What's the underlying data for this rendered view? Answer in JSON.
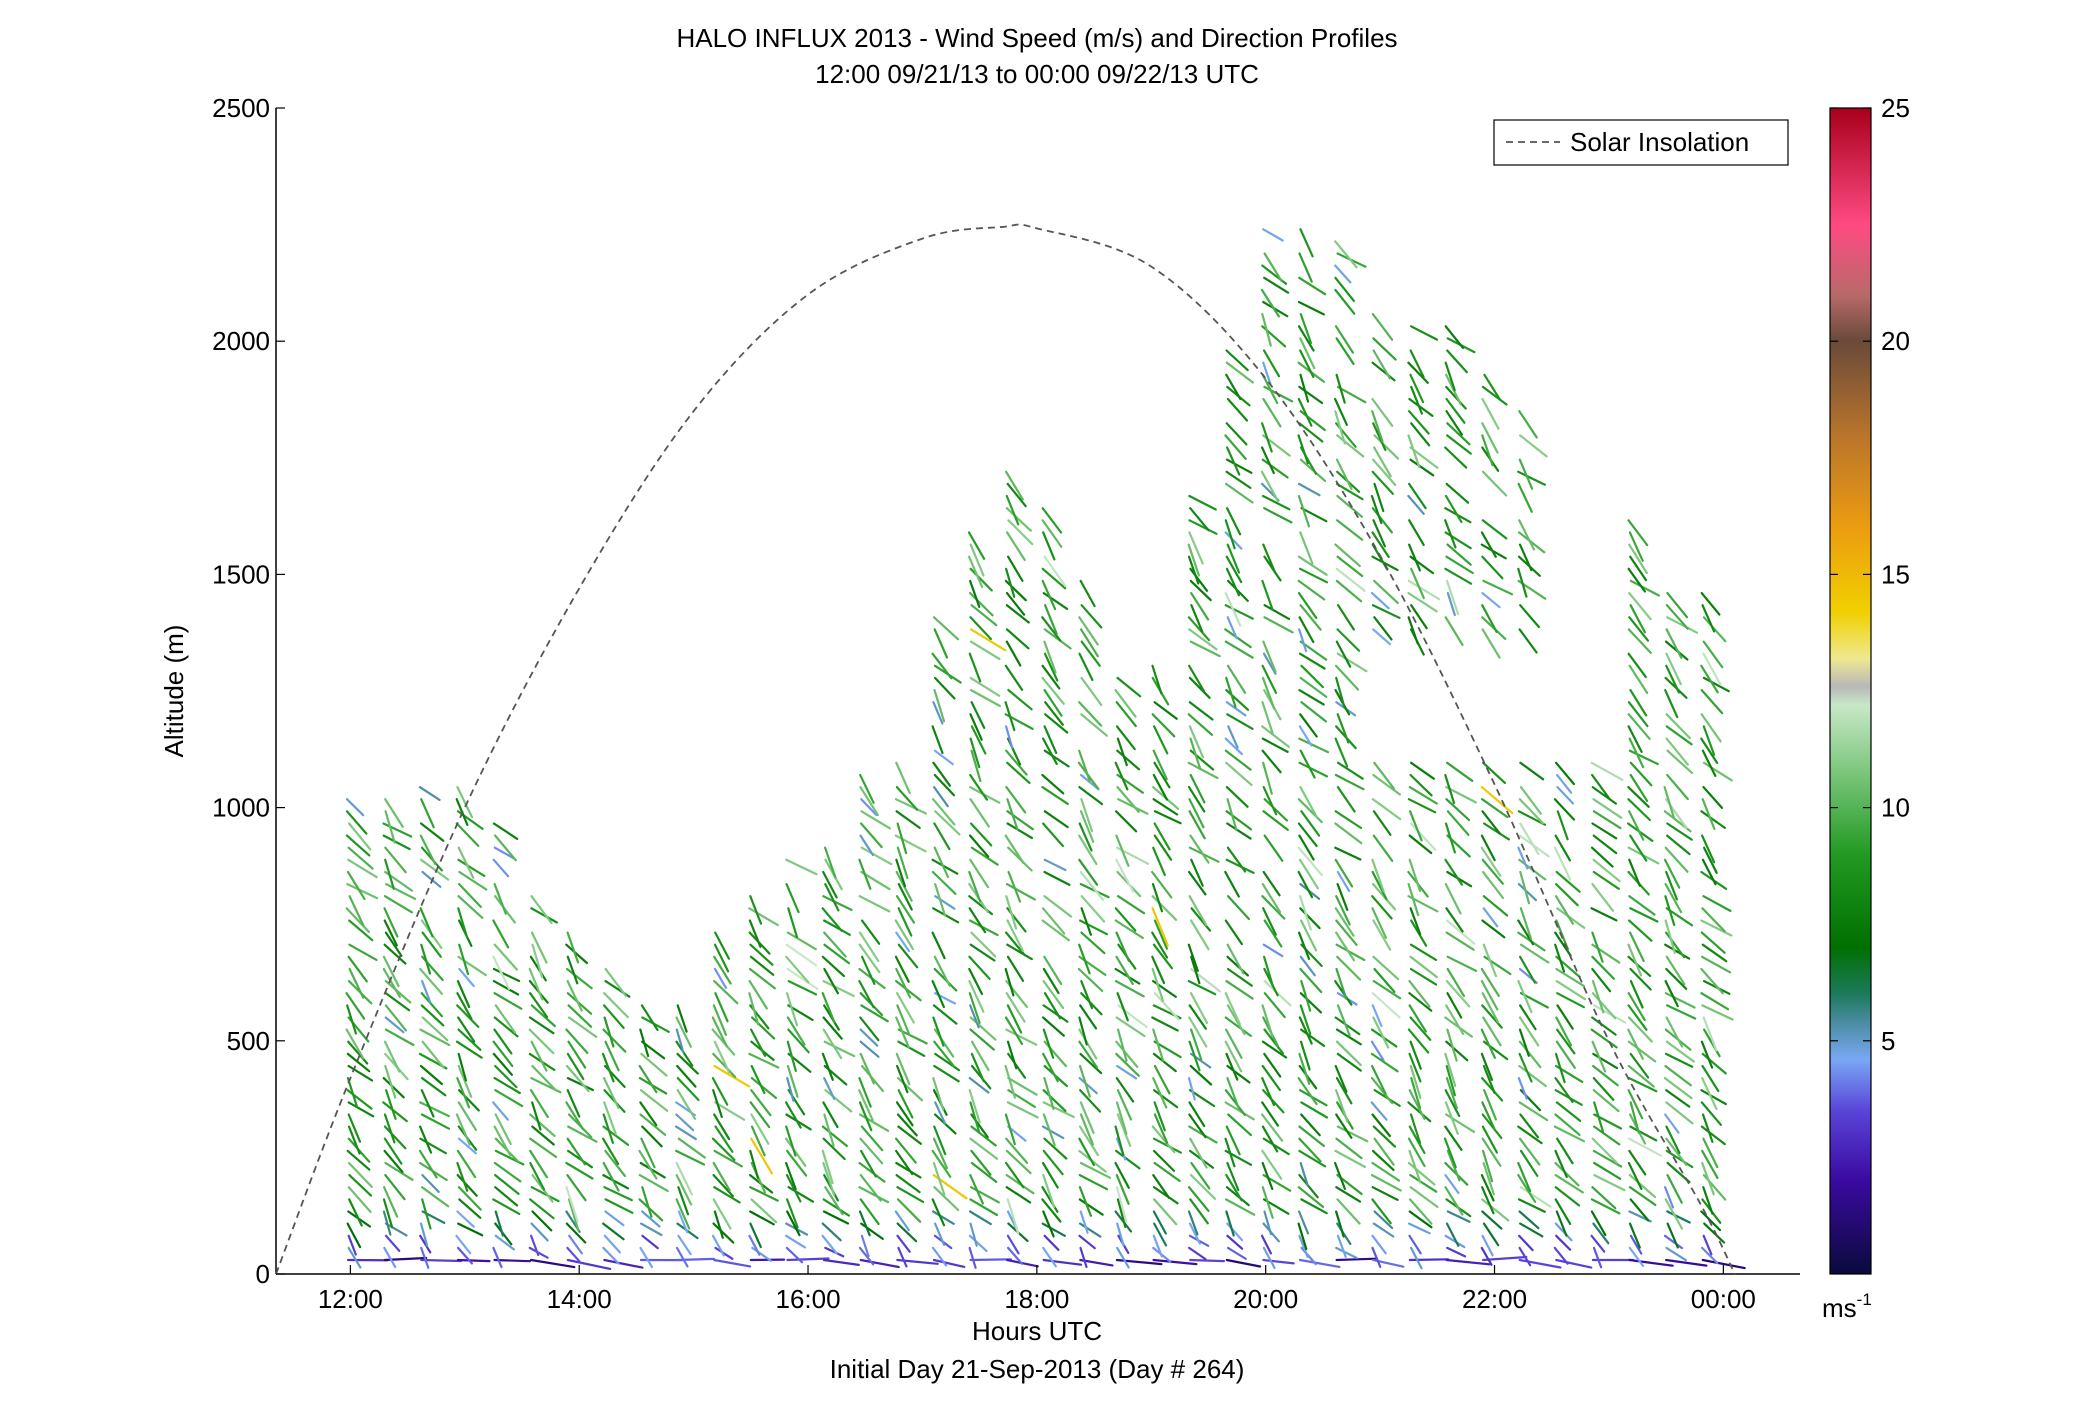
{
  "chart_data": {
    "type": "scatter",
    "title": "HALO INFLUX 2013 - Wind Speed (m/s) and Direction Profiles",
    "subtitle": "12:00 09/21/13 to 00:00 09/22/13  UTC",
    "xlabel": "Hours UTC",
    "xlabel2": "Initial Day 21-Sep-2013 (Day # 264)",
    "ylabel": "Altitude (m)",
    "xlim": [
      11.35,
      24.67
    ],
    "ylim": [
      0,
      2500
    ],
    "x_ticks": [
      12,
      14,
      16,
      18,
      20,
      22,
      24
    ],
    "x_tick_labels": [
      "12:00",
      "14:00",
      "16:00",
      "18:00",
      "20:00",
      "22:00",
      "00:00"
    ],
    "y_ticks": [
      0,
      500,
      1000,
      1500,
      2000,
      2500
    ],
    "y_tick_labels": [
      "0",
      "500",
      "1000",
      "1500",
      "2000",
      "2500"
    ],
    "legend": {
      "entries": [
        "Solar Insolation"
      ],
      "placement": "top-right",
      "line_style": "dashed",
      "color": "#555555"
    },
    "colorbar": {
      "range": [
        0,
        25
      ],
      "ticks": [
        5,
        10,
        15,
        20,
        25
      ],
      "tick_labels": [
        "5",
        "10",
        "15",
        "20",
        "25"
      ],
      "unit_label": "ms",
      "unit_exponent": "-1",
      "stops": [
        {
          "v": 0,
          "color": "#0a0a3c"
        },
        {
          "v": 2,
          "color": "#3a0aa0"
        },
        {
          "v": 3.5,
          "color": "#5a44d8"
        },
        {
          "v": 4.6,
          "color": "#78a8f4"
        },
        {
          "v": 5.4,
          "color": "#4a8ca0"
        },
        {
          "v": 6.0,
          "color": "#1c7a5c"
        },
        {
          "v": 7.0,
          "color": "#007000"
        },
        {
          "v": 9.0,
          "color": "#229a22"
        },
        {
          "v": 11.0,
          "color": "#88cc88"
        },
        {
          "v": 12.2,
          "color": "#c8e8c8"
        },
        {
          "v": 12.6,
          "color": "#b8b8b8"
        },
        {
          "v": 13.2,
          "color": "#f0e890"
        },
        {
          "v": 14.2,
          "color": "#f0d000"
        },
        {
          "v": 16.0,
          "color": "#ec9c10"
        },
        {
          "v": 18.0,
          "color": "#b8742c"
        },
        {
          "v": 20.0,
          "color": "#6a4a3a"
        },
        {
          "v": 21.0,
          "color": "#b86a6a"
        },
        {
          "v": 22.5,
          "color": "#ff4a82"
        },
        {
          "v": 25.0,
          "color": "#a8001c"
        }
      ]
    },
    "solar_insolation_curve": {
      "x": [
        11.35,
        12.0,
        13.0,
        14.0,
        15.0,
        16.0,
        17.0,
        17.7,
        18.0,
        19.0,
        20.0,
        21.0,
        22.0,
        23.0,
        23.8,
        24.1
      ],
      "y": [
        0,
        420,
        1000,
        1470,
        1850,
        2100,
        2220,
        2245,
        2242,
        2160,
        1920,
        1540,
        1050,
        500,
        150,
        0
      ]
    },
    "profile_times": [
      11.98,
      12.3,
      12.62,
      12.94,
      13.26,
      13.58,
      13.9,
      14.22,
      14.54,
      14.86,
      15.18,
      15.5,
      15.82,
      16.14,
      16.46,
      16.78,
      17.1,
      17.42,
      17.74,
      18.06,
      18.38,
      18.7,
      19.02,
      19.34,
      19.66,
      19.98,
      20.3,
      20.62,
      20.94,
      21.26,
      21.58,
      21.9,
      22.22,
      22.54,
      22.86,
      23.18,
      23.5,
      23.82
    ],
    "profile_tops_m": [
      1060,
      1060,
      1060,
      1050,
      980,
      820,
      760,
      670,
      600,
      600,
      740,
      830,
      900,
      980,
      1090,
      1160,
      1430,
      1590,
      1720,
      1650,
      1500,
      1300,
      1310,
      1880,
      1990,
      2250,
      2250,
      2220,
      2080,
      2040,
      2040,
      1940,
      1860,
      1200,
      1100,
      1640,
      1480,
      1460
    ],
    "gaps": [
      {
        "x_range": [
          17.9,
          19.4
        ],
        "y_range": [
          1680,
          2500
        ]
      },
      {
        "x_range": [
          20.9,
          22.3
        ],
        "y_range": [
          1100,
          1380
        ]
      },
      {
        "x_range": [
          22.4,
          23.0
        ],
        "y_range": [
          1100,
          1400
        ]
      }
    ],
    "notes": "Wind barbs: one short line segment per range gate (~25 m spacing); segment direction follows wind direction, color follows wind speed per the colorbar. Lowest gates (< ~120 m) are light-to-dark blue/purple (2–5 m/s); most of the profile is green (7–11 m/s) with occasional blue, gray and orange outliers."
  }
}
